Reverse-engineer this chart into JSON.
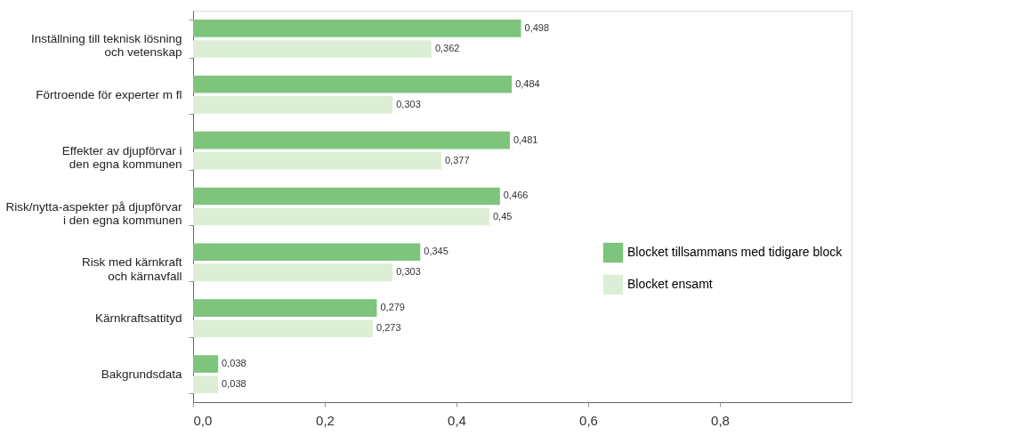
{
  "chart_data": {
    "type": "bar",
    "orientation": "horizontal",
    "categories": [
      "Inställning till teknisk lösning\noch vetenskap",
      "Förtroende för experter m fl",
      "Effekter av djupförvar i\nden egna kommunen",
      "Risk/nytta-aspekter på djupförvar\ni den egna kommunen",
      "Risk med kärnkraft\noch kärnavfall",
      "Kärnkraftsattityd",
      "Bakgrundsdata"
    ],
    "series": [
      {
        "name": "Blocket tillsammans med tidigare block",
        "color": "#7dc47d",
        "values": [
          0.498,
          0.484,
          0.481,
          0.466,
          0.345,
          0.279,
          0.038
        ],
        "value_labels": [
          "0,498",
          "0,484",
          "0,481",
          "0,466",
          "0,345",
          "0,279",
          "0,038"
        ]
      },
      {
        "name": "Blocket ensamt",
        "color": "#dcefd6",
        "values": [
          0.362,
          0.303,
          0.377,
          0.45,
          0.303,
          0.273,
          0.038
        ],
        "value_labels": [
          "0,362",
          "0,303",
          "0,377",
          "0,45",
          "0,303",
          "0,273",
          "0,038"
        ]
      }
    ],
    "xlim": [
      0,
      1
    ],
    "xticks": [
      {
        "value": 0,
        "label": "0,0"
      },
      {
        "value": 0.2,
        "label": "0,2"
      },
      {
        "value": 0.4,
        "label": "0,4"
      },
      {
        "value": 0.6,
        "label": "0,6"
      },
      {
        "value": 0.8,
        "label": "0,8"
      }
    ],
    "grid": false,
    "legend": "right"
  }
}
